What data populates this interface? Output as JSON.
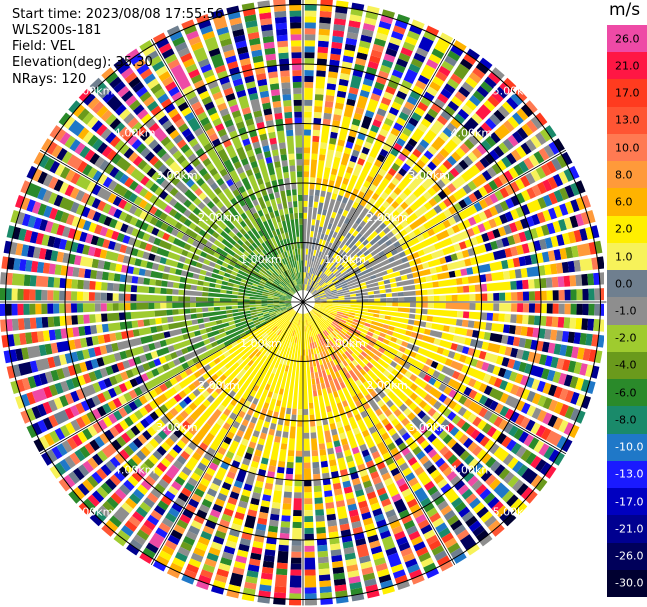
{
  "info": {
    "start_time": "Start time: 2023/08/08 17:55:56",
    "instrument": "WLS200s-181",
    "field": "Field: VEL",
    "elevation": "Elevation(deg): 35.30",
    "nrays": "NRays: 120"
  },
  "colorbar": {
    "unit": "m/s",
    "bins": [
      {
        "label": "26.0",
        "color": "#ee4aa6",
        "text": "#000000"
      },
      {
        "label": "21.0",
        "color": "#ff1744",
        "text": "#000000"
      },
      {
        "label": "17.0",
        "color": "#ff3b1f",
        "text": "#000000"
      },
      {
        "label": "13.0",
        "color": "#ff5533",
        "text": "#000000"
      },
      {
        "label": "10.0",
        "color": "#ff7a52",
        "text": "#000000"
      },
      {
        "label": "8.0",
        "color": "#ff9a3a",
        "text": "#000000"
      },
      {
        "label": "6.0",
        "color": "#ffb300",
        "text": "#000000"
      },
      {
        "label": "2.0",
        "color": "#ffef00",
        "text": "#000000"
      },
      {
        "label": "1.0",
        "color": "#f7f25a",
        "text": "#000000"
      },
      {
        "label": "0.0",
        "color": "#6f7f8f",
        "text": "#000000"
      },
      {
        "label": "-1.0",
        "color": "#8e8e8e",
        "text": "#000000"
      },
      {
        "label": "-2.0",
        "color": "#9fcb2f",
        "text": "#000000"
      },
      {
        "label": "-4.0",
        "color": "#6a9a1c",
        "text": "#000000"
      },
      {
        "label": "-6.0",
        "color": "#2a8a2a",
        "text": "#000000"
      },
      {
        "label": "-8.0",
        "color": "#1a8a6a",
        "text": "#000000"
      },
      {
        "label": "-10.0",
        "color": "#1f78c8",
        "text": "#ffffff"
      },
      {
        "label": "-13.0",
        "color": "#1a1aff",
        "text": "#ffffff"
      },
      {
        "label": "-17.0",
        "color": "#0000c0",
        "text": "#ffffff"
      },
      {
        "label": "-21.0",
        "color": "#000090",
        "text": "#ffffff"
      },
      {
        "label": "-26.0",
        "color": "#00005a",
        "text": "#ffffff"
      },
      {
        "label": "-30.0",
        "color": "#000030",
        "text": "#ffffff"
      }
    ]
  },
  "chart_data": {
    "type": "heatmap",
    "field": "VEL",
    "elevation_deg": 35.3,
    "nrays": 120,
    "range_rings_km": [
      1.0,
      2.0,
      3.0,
      4.0,
      5.0
    ],
    "range_ring_labels": [
      "1.00km",
      "2.00km",
      "3.00km",
      "4.00km",
      "5.00km"
    ],
    "max_range_km": 5.1,
    "azimuth_lines_deg": [
      0,
      30,
      60,
      90,
      120,
      150,
      180,
      210,
      240,
      270,
      300,
      330
    ],
    "colorbar_unit": "m/s",
    "colorbar_range": [
      -30.0,
      26.0
    ],
    "grid": true
  }
}
